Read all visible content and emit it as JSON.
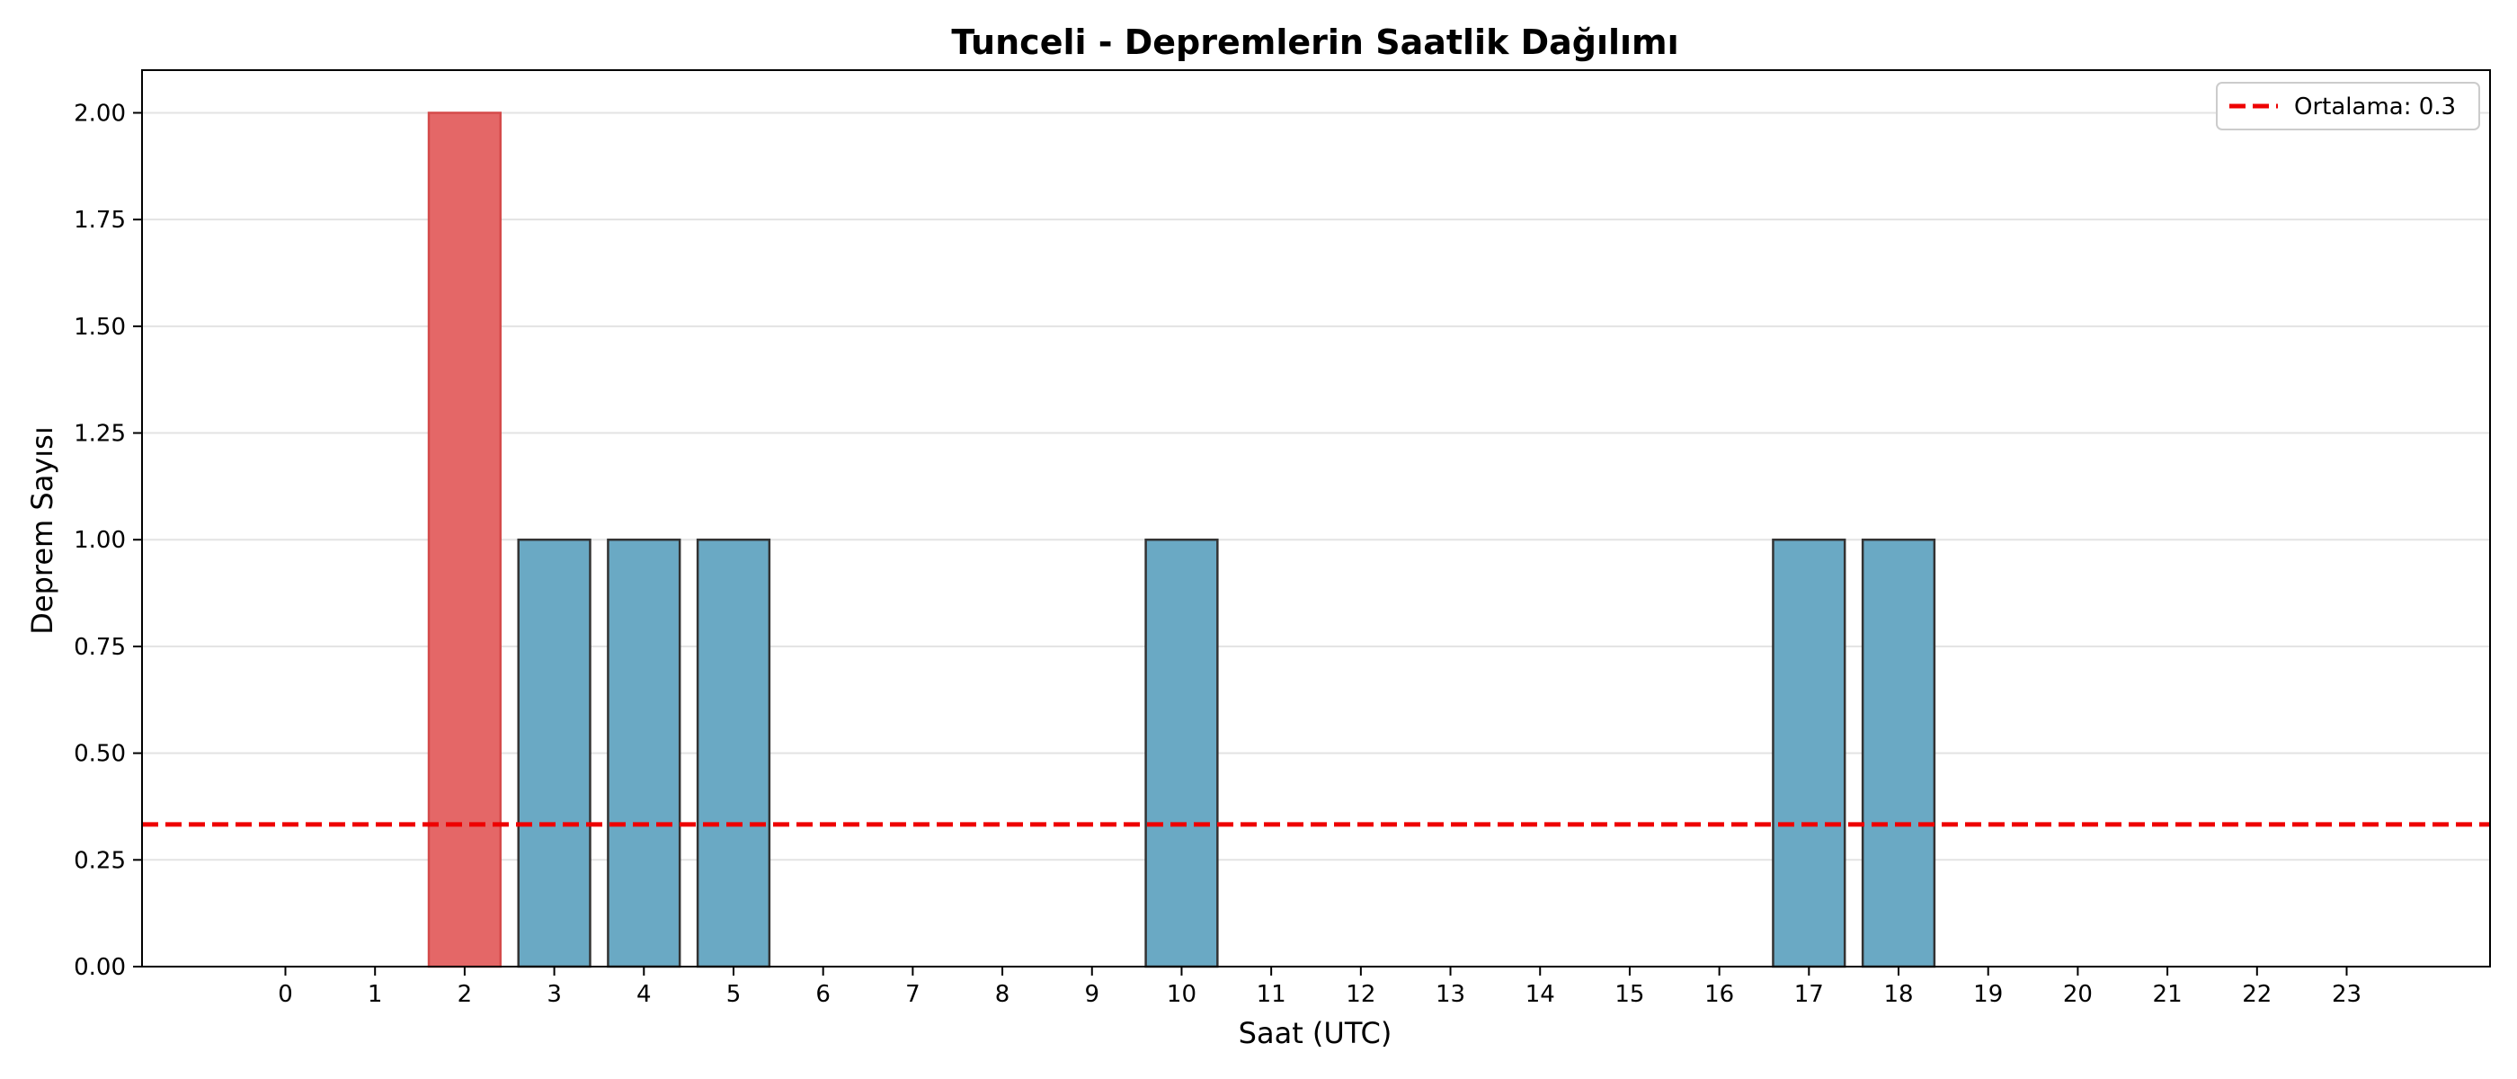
{
  "chart_data": {
    "type": "bar",
    "title": "Tunceli - Depremlerin Saatlik Dağılımı",
    "xlabel": "Saat (UTC)",
    "ylabel": "Deprem Sayısı",
    "categories": [
      "0",
      "1",
      "2",
      "3",
      "4",
      "5",
      "6",
      "7",
      "8",
      "9",
      "10",
      "11",
      "12",
      "13",
      "14",
      "15",
      "16",
      "17",
      "18",
      "19",
      "20",
      "21",
      "22",
      "23"
    ],
    "values": [
      0,
      0,
      2,
      1,
      1,
      1,
      0,
      0,
      0,
      0,
      1,
      0,
      0,
      0,
      0,
      0,
      0,
      1,
      1,
      0,
      0,
      0,
      0,
      0
    ],
    "highlight_index": 2,
    "ylim": [
      0,
      2.1
    ],
    "yticks": [
      "0.00",
      "0.25",
      "0.50",
      "0.75",
      "1.00",
      "1.25",
      "1.50",
      "1.75",
      "2.00"
    ],
    "mean_line": {
      "value": 0.333,
      "label": "Ortalama: 0.3",
      "color": "#ee0000",
      "style": "dashed"
    },
    "bar_color": "#6aa9c4",
    "highlight_color": "#e46767",
    "edge_color": "#333333",
    "grid": {
      "y": true,
      "x": false
    },
    "legend_position": "top-right"
  }
}
